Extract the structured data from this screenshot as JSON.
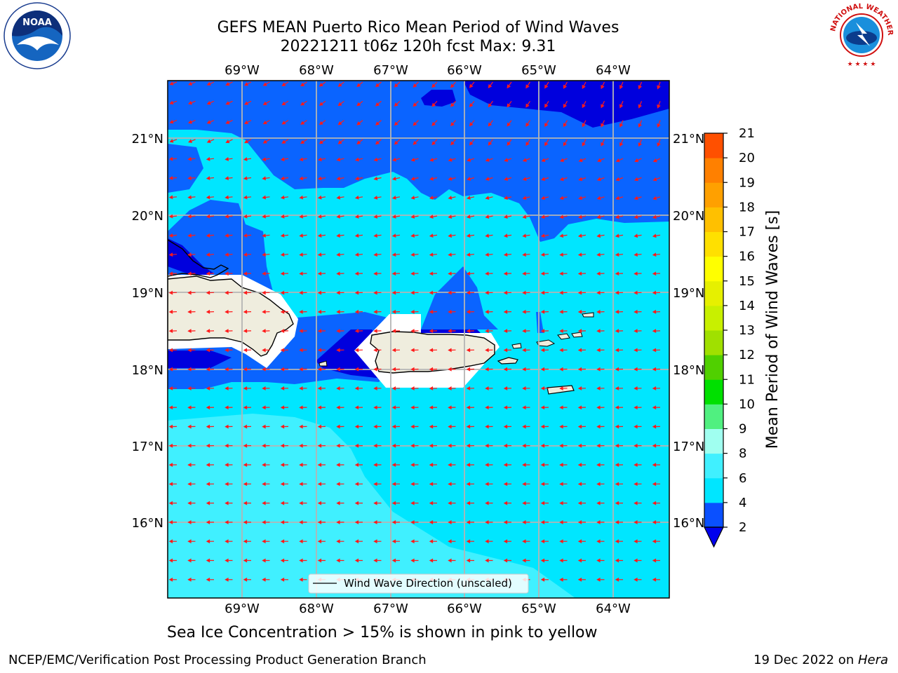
{
  "header": {
    "title_line1": "GEFS MEAN Puerto Rico Mean Period of Wind Waves",
    "title_line2": "20221211 t06z 120h fcst   Max: 9.31"
  },
  "map": {
    "lon_labels": [
      "69°W",
      "68°W",
      "67°W",
      "66°W",
      "65°W",
      "64°W"
    ],
    "lat_labels": [
      "21°N",
      "20°N",
      "19°N",
      "18°N",
      "17°N",
      "16°N"
    ],
    "legend_label": "Wind Wave Direction (unscaled)"
  },
  "colorbar": {
    "label": "Mean Period of Wind Waves [s]",
    "ticks": [
      "2",
      "4",
      "6",
      "8",
      "9",
      "10",
      "11",
      "12",
      "13",
      "14",
      "15",
      "16",
      "17",
      "18",
      "19",
      "20",
      "21"
    ],
    "colors": [
      "#0a50ff",
      "#00e6ff",
      "#40f0ff",
      "#a0fff0",
      "#50f080",
      "#00e000",
      "#50d000",
      "#a0e000",
      "#c8f000",
      "#e6f000",
      "#ffff00",
      "#ffe000",
      "#ffc000",
      "#ffa000",
      "#ff8000",
      "#ff5000",
      "#ff2000",
      "#ff0000"
    ],
    "extend_min_color": "#0000ee"
  },
  "footer": {
    "sea_ice_note": "Sea Ice Concentration > 15% is shown in pink to yellow",
    "branch": "NCEP/EMC/Verification Post Processing Product Generation Branch",
    "date_prefix": "19 Dec 2022 on ",
    "host": "Hera"
  },
  "logos": {
    "noaa_text": "NOAA",
    "nws_text": "NATIONAL WEATHER SERVICE"
  }
}
